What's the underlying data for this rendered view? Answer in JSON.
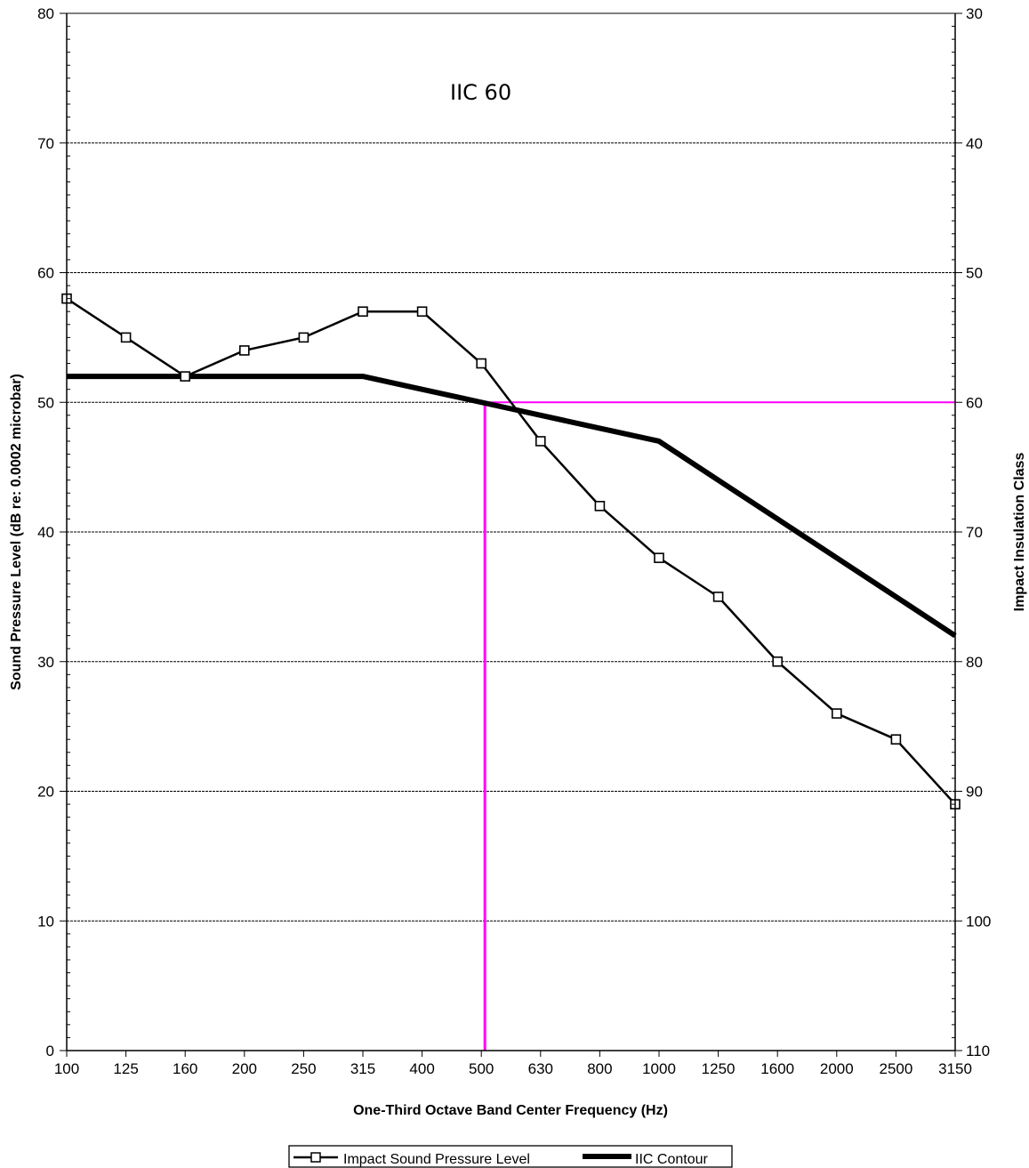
{
  "chart_data": {
    "type": "line",
    "xlabel": "One-Third Octave Band Center Frequency (Hz)",
    "ylabel": "Sound Pressure Level (dB re: 0.0002 microbar)",
    "y2label": "Impact Insulation Class",
    "categories": [
      "100",
      "125",
      "160",
      "200",
      "250",
      "315",
      "400",
      "500",
      "630",
      "800",
      "1000",
      "1250",
      "1600",
      "2000",
      "2500",
      "3150"
    ],
    "ylim": [
      0,
      80
    ],
    "yticks": [
      0,
      10,
      20,
      30,
      40,
      50,
      60,
      70,
      80
    ],
    "y2lim": [
      110,
      30
    ],
    "y2ticks": [
      110,
      100,
      90,
      80,
      70,
      60,
      50,
      40,
      30
    ],
    "grid": true,
    "legend_position": "bottom",
    "annotation": "IIC 60",
    "series": [
      {
        "name": "Impact Sound Pressure Level",
        "values": [
          58,
          55,
          52,
          54,
          55,
          57,
          57,
          53,
          47,
          42,
          38,
          35,
          30,
          26,
          24,
          19
        ],
        "marker": "square",
        "color": "#000000"
      },
      {
        "name": "IIC Contour",
        "values": [
          52,
          52,
          52,
          52,
          52,
          52,
          51,
          50,
          49,
          48,
          47,
          44,
          41,
          38,
          35,
          32
        ],
        "marker": "none",
        "color": "#000000"
      }
    ],
    "reference_lines": {
      "color": "#ff00ff",
      "horizontal_y": 50,
      "vertical_x_category": "500"
    }
  }
}
